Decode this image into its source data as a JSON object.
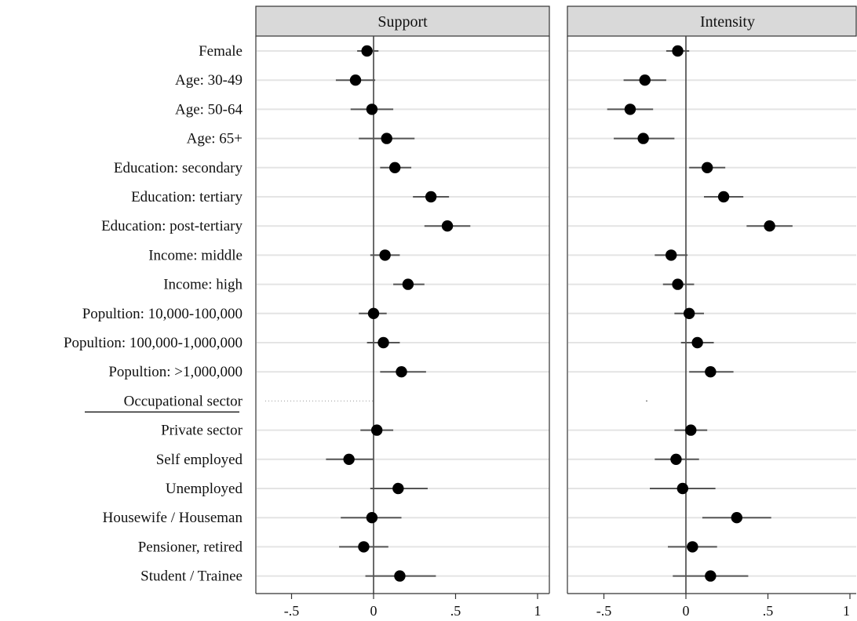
{
  "chart_data": {
    "type": "scatter",
    "description_style": "coefficient plot with confidence intervals",
    "categories": [
      "Female",
      "Age: 30-49",
      "Age: 50-64",
      "Age: 65+",
      "Education: secondary",
      "Education: tertiary",
      "Education: post-tertiary",
      "Income: middle",
      "Income: high",
      "Popultion: 10,000-100,000",
      "Popultion: 100,000-1,000,000",
      "Popultion: >1,000,000",
      "Occupational sector",
      "Private sector",
      "Self employed",
      "Unemployed",
      "Housewife / Houseman",
      "Pensioner, retired",
      "Student / Trainee"
    ],
    "header_category": "Occupational sector",
    "xticks": [
      -0.5,
      0,
      0.5,
      1
    ],
    "xtick_labels": [
      "-.5",
      "0",
      ".5",
      "1"
    ],
    "xlim": [
      -0.73,
      1.03
    ],
    "grid": true,
    "panels": [
      {
        "title": "Support",
        "points": [
          {
            "est": -0.04,
            "lo": -0.1,
            "hi": 0.03
          },
          {
            "est": -0.11,
            "lo": -0.23,
            "hi": 0.01
          },
          {
            "est": -0.01,
            "lo": -0.14,
            "hi": 0.12
          },
          {
            "est": 0.08,
            "lo": -0.09,
            "hi": 0.25
          },
          {
            "est": 0.13,
            "lo": 0.04,
            "hi": 0.23
          },
          {
            "est": 0.35,
            "lo": 0.24,
            "hi": 0.46
          },
          {
            "est": 0.45,
            "lo": 0.31,
            "hi": 0.59
          },
          {
            "est": 0.07,
            "lo": -0.02,
            "hi": 0.16
          },
          {
            "est": 0.21,
            "lo": 0.12,
            "hi": 0.31
          },
          {
            "est": 0.0,
            "lo": -0.09,
            "hi": 0.08
          },
          {
            "est": 0.06,
            "lo": -0.04,
            "hi": 0.16
          },
          {
            "est": 0.17,
            "lo": 0.04,
            "hi": 0.32
          },
          null,
          {
            "est": 0.02,
            "lo": -0.08,
            "hi": 0.12
          },
          {
            "est": -0.15,
            "lo": -0.29,
            "hi": 0.0
          },
          {
            "est": 0.15,
            "lo": -0.02,
            "hi": 0.33
          },
          {
            "est": -0.01,
            "lo": -0.2,
            "hi": 0.17
          },
          {
            "est": -0.06,
            "lo": -0.21,
            "hi": 0.09
          },
          {
            "est": 0.16,
            "lo": -0.05,
            "hi": 0.38
          }
        ]
      },
      {
        "title": "Intensity",
        "points": [
          {
            "est": -0.05,
            "lo": -0.12,
            "hi": 0.02
          },
          {
            "est": -0.25,
            "lo": -0.38,
            "hi": -0.12
          },
          {
            "est": -0.34,
            "lo": -0.48,
            "hi": -0.2
          },
          {
            "est": -0.26,
            "lo": -0.44,
            "hi": -0.07
          },
          {
            "est": 0.13,
            "lo": 0.02,
            "hi": 0.24
          },
          {
            "est": 0.23,
            "lo": 0.11,
            "hi": 0.35
          },
          {
            "est": 0.51,
            "lo": 0.37,
            "hi": 0.65
          },
          {
            "est": -0.09,
            "lo": -0.19,
            "hi": 0.01
          },
          {
            "est": -0.05,
            "lo": -0.14,
            "hi": 0.05
          },
          {
            "est": 0.02,
            "lo": -0.07,
            "hi": 0.11
          },
          {
            "est": 0.07,
            "lo": -0.03,
            "hi": 0.17
          },
          {
            "est": 0.15,
            "lo": 0.02,
            "hi": 0.29
          },
          null,
          {
            "est": 0.03,
            "lo": -0.07,
            "hi": 0.13
          },
          {
            "est": -0.06,
            "lo": -0.19,
            "hi": 0.08
          },
          {
            "est": -0.02,
            "lo": -0.22,
            "hi": 0.18
          },
          {
            "est": 0.31,
            "lo": 0.1,
            "hi": 0.52
          },
          {
            "est": 0.04,
            "lo": -0.11,
            "hi": 0.19
          },
          {
            "est": 0.15,
            "lo": -0.08,
            "hi": 0.38
          }
        ]
      }
    ],
    "colors": {
      "marker": "#000000",
      "ci_line": "#555555",
      "gridline": "#e4e4e4",
      "zero_line": "#444444",
      "header_fill": "#d9d9d9",
      "frame": "#333333"
    }
  }
}
